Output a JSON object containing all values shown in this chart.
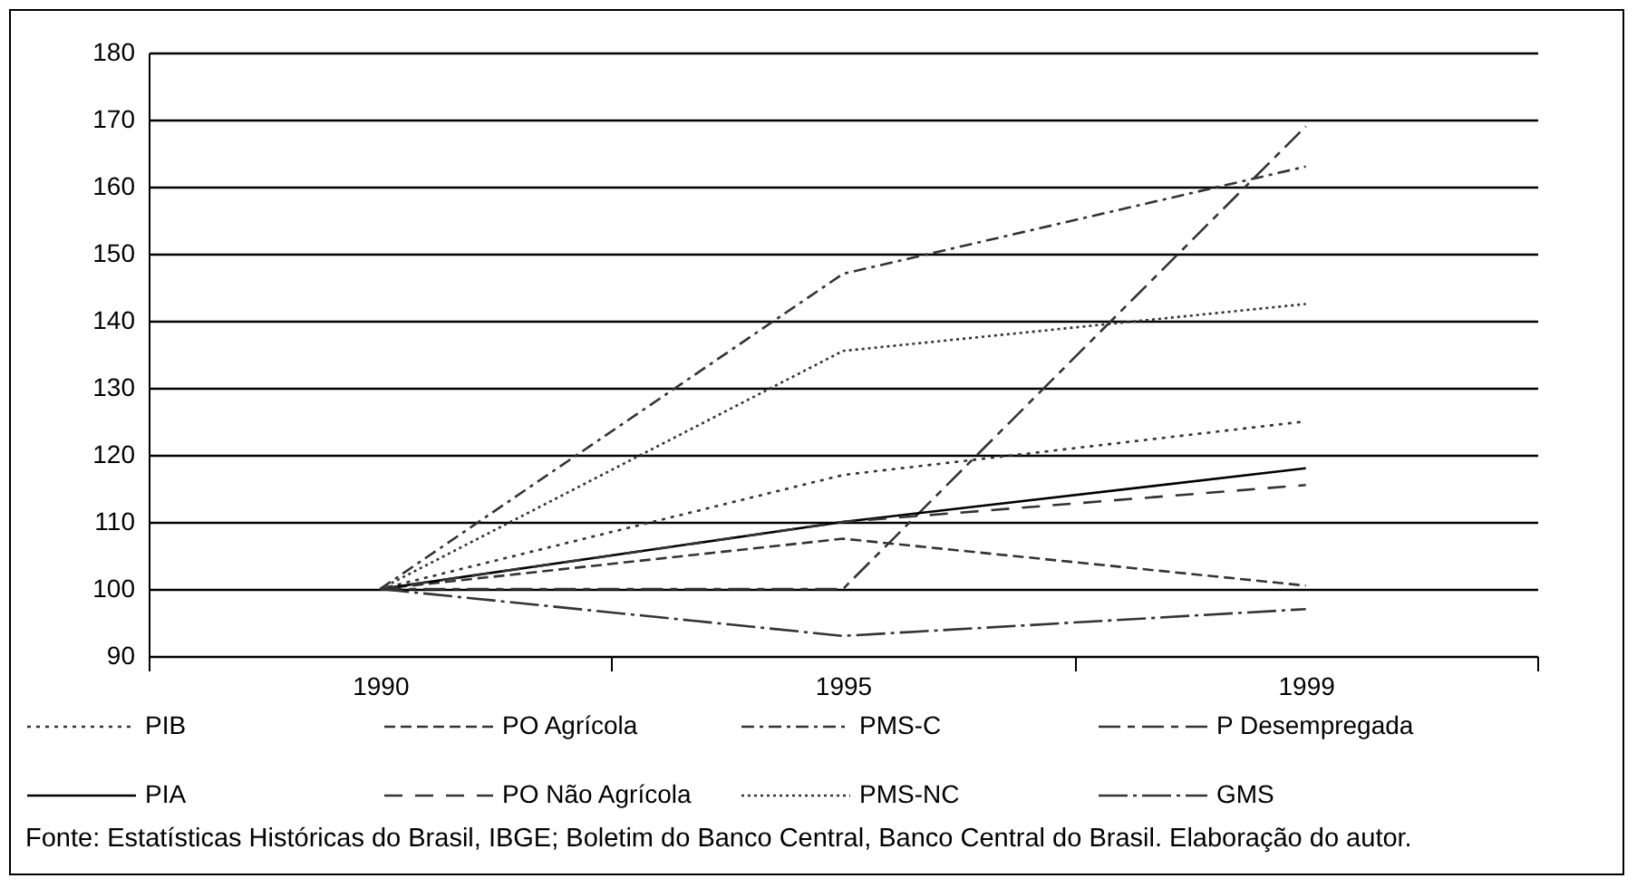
{
  "chart_data": {
    "type": "line",
    "categories": [
      "1990",
      "1995",
      "1999"
    ],
    "ylim": [
      90,
      180
    ],
    "yticks": [
      90,
      100,
      110,
      120,
      130,
      140,
      150,
      160,
      170,
      180
    ],
    "grid": "y",
    "legend": "bottom",
    "marker": "none",
    "series": [
      {
        "name": "PIB",
        "color": "#333333",
        "line_style": "dotted",
        "values": [
          100,
          117,
          125
        ]
      },
      {
        "name": "PO Agrícola",
        "color": "#333333",
        "line_style": "dashed",
        "values": [
          100,
          107.5,
          100.5
        ]
      },
      {
        "name": "PMS-C",
        "color": "#333333",
        "line_style": "dashed",
        "values": [
          100,
          147,
          163
        ]
      },
      {
        "name": "P Desempregada",
        "color": "#333333",
        "line_style": "dashed",
        "values": [
          100,
          100,
          169
        ]
      },
      {
        "name": "PIA",
        "color": "#000000",
        "line_style": "solid",
        "values": [
          100,
          110,
          118
        ]
      },
      {
        "name": "PO Não Agrícola",
        "color": "#333333",
        "line_style": "dashed",
        "values": [
          100,
          110,
          115.5
        ]
      },
      {
        "name": "PMS-NC",
        "color": "#333333",
        "line_style": "dotted",
        "values": [
          100,
          135.5,
          142.5
        ]
      },
      {
        "name": "GMS",
        "color": "#333333",
        "line_style": "dashed",
        "values": [
          100,
          93,
          97
        ]
      }
    ],
    "annotations": [
      "Fonte: Estatísticas Históricas do Brasil, IBGE; Boletim do Banco Central, Banco Central do Brasil. Elaboração do autor."
    ]
  }
}
